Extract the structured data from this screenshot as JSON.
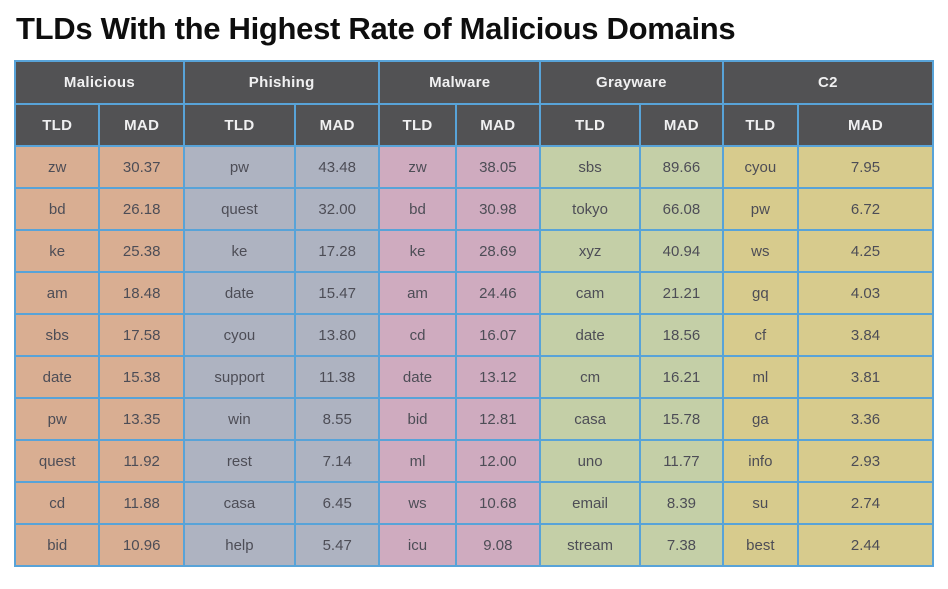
{
  "page": {
    "title": "TLDs With the Highest Rate of Malicious Domains"
  },
  "colors": {
    "border": "#58a3d8",
    "header_bg": "#525254",
    "header_text": "#f0f0f1",
    "cell_text": "#4d4d56",
    "malicious_bg": "#d9ae92",
    "phishing_bg": "#aeb3c1",
    "malware_bg": "#cfabbf",
    "grayware_bg": "#c4cfa7",
    "c2_bg": "#d7cb8d"
  },
  "table": {
    "sub_headers": [
      "TLD",
      "MAD"
    ],
    "groups": [
      {
        "label": "Malicious",
        "color": "#d9ae92",
        "rows": [
          [
            "zw",
            "30.37"
          ],
          [
            "bd",
            "26.18"
          ],
          [
            "ke",
            "25.38"
          ],
          [
            "am",
            "18.48"
          ],
          [
            "sbs",
            "17.58"
          ],
          [
            "date",
            "15.38"
          ],
          [
            "pw",
            "13.35"
          ],
          [
            "quest",
            "11.92"
          ],
          [
            "cd",
            "11.88"
          ],
          [
            "bid",
            "10.96"
          ]
        ]
      },
      {
        "label": "Phishing",
        "color": "#aeb3c1",
        "rows": [
          [
            "pw",
            "43.48"
          ],
          [
            "quest",
            "32.00"
          ],
          [
            "ke",
            "17.28"
          ],
          [
            "date",
            "15.47"
          ],
          [
            "cyou",
            "13.80"
          ],
          [
            "support",
            "11.38"
          ],
          [
            "win",
            "8.55"
          ],
          [
            "rest",
            "7.14"
          ],
          [
            "casa",
            "6.45"
          ],
          [
            "help",
            "5.47"
          ]
        ]
      },
      {
        "label": "Malware",
        "color": "#cfabbf",
        "rows": [
          [
            "zw",
            "38.05"
          ],
          [
            "bd",
            "30.98"
          ],
          [
            "ke",
            "28.69"
          ],
          [
            "am",
            "24.46"
          ],
          [
            "cd",
            "16.07"
          ],
          [
            "date",
            "13.12"
          ],
          [
            "bid",
            "12.81"
          ],
          [
            "ml",
            "12.00"
          ],
          [
            "ws",
            "10.68"
          ],
          [
            "icu",
            "9.08"
          ]
        ]
      },
      {
        "label": "Grayware",
        "color": "#c4cfa7",
        "rows": [
          [
            "sbs",
            "89.66"
          ],
          [
            "tokyo",
            "66.08"
          ],
          [
            "xyz",
            "40.94"
          ],
          [
            "cam",
            "21.21"
          ],
          [
            "date",
            "18.56"
          ],
          [
            "cm",
            "16.21"
          ],
          [
            "casa",
            "15.78"
          ],
          [
            "uno",
            "11.77"
          ],
          [
            "email",
            "8.39"
          ],
          [
            "stream",
            "7.38"
          ]
        ]
      },
      {
        "label": "C2",
        "color": "#d7cb8d",
        "rows": [
          [
            "cyou",
            "7.95"
          ],
          [
            "pw",
            "6.72"
          ],
          [
            "ws",
            "4.25"
          ],
          [
            "gq",
            "4.03"
          ],
          [
            "cf",
            "3.84"
          ],
          [
            "ml",
            "3.81"
          ],
          [
            "ga",
            "3.36"
          ],
          [
            "info",
            "2.93"
          ],
          [
            "su",
            "2.74"
          ],
          [
            "best",
            "2.44"
          ]
        ]
      }
    ]
  },
  "chart_data": {
    "type": "table",
    "title": "TLDs With the Highest Rate of Malicious Domains",
    "column_groups": [
      "Malicious",
      "Phishing",
      "Malware",
      "Grayware",
      "C2"
    ],
    "sub_columns": [
      "TLD",
      "MAD"
    ],
    "series": [
      {
        "name": "Malicious",
        "tlds": [
          "zw",
          "bd",
          "ke",
          "am",
          "sbs",
          "date",
          "pw",
          "quest",
          "cd",
          "bid"
        ],
        "mad": [
          30.37,
          26.18,
          25.38,
          18.48,
          17.58,
          15.38,
          13.35,
          11.92,
          11.88,
          10.96
        ]
      },
      {
        "name": "Phishing",
        "tlds": [
          "pw",
          "quest",
          "ke",
          "date",
          "cyou",
          "support",
          "win",
          "rest",
          "casa",
          "help"
        ],
        "mad": [
          43.48,
          32.0,
          17.28,
          15.47,
          13.8,
          11.38,
          8.55,
          7.14,
          6.45,
          5.47
        ]
      },
      {
        "name": "Malware",
        "tlds": [
          "zw",
          "bd",
          "ke",
          "am",
          "cd",
          "date",
          "bid",
          "ml",
          "ws",
          "icu"
        ],
        "mad": [
          38.05,
          30.98,
          28.69,
          24.46,
          16.07,
          13.12,
          12.81,
          12.0,
          10.68,
          9.08
        ]
      },
      {
        "name": "Grayware",
        "tlds": [
          "sbs",
          "tokyo",
          "xyz",
          "cam",
          "date",
          "cm",
          "casa",
          "uno",
          "email",
          "stream"
        ],
        "mad": [
          89.66,
          66.08,
          40.94,
          21.21,
          18.56,
          16.21,
          15.78,
          11.77,
          8.39,
          7.38
        ]
      },
      {
        "name": "C2",
        "tlds": [
          "cyou",
          "pw",
          "ws",
          "gq",
          "cf",
          "ml",
          "ga",
          "info",
          "su",
          "best"
        ],
        "mad": [
          7.95,
          6.72,
          4.25,
          4.03,
          3.84,
          3.81,
          3.36,
          2.93,
          2.74,
          2.44
        ]
      }
    ]
  }
}
